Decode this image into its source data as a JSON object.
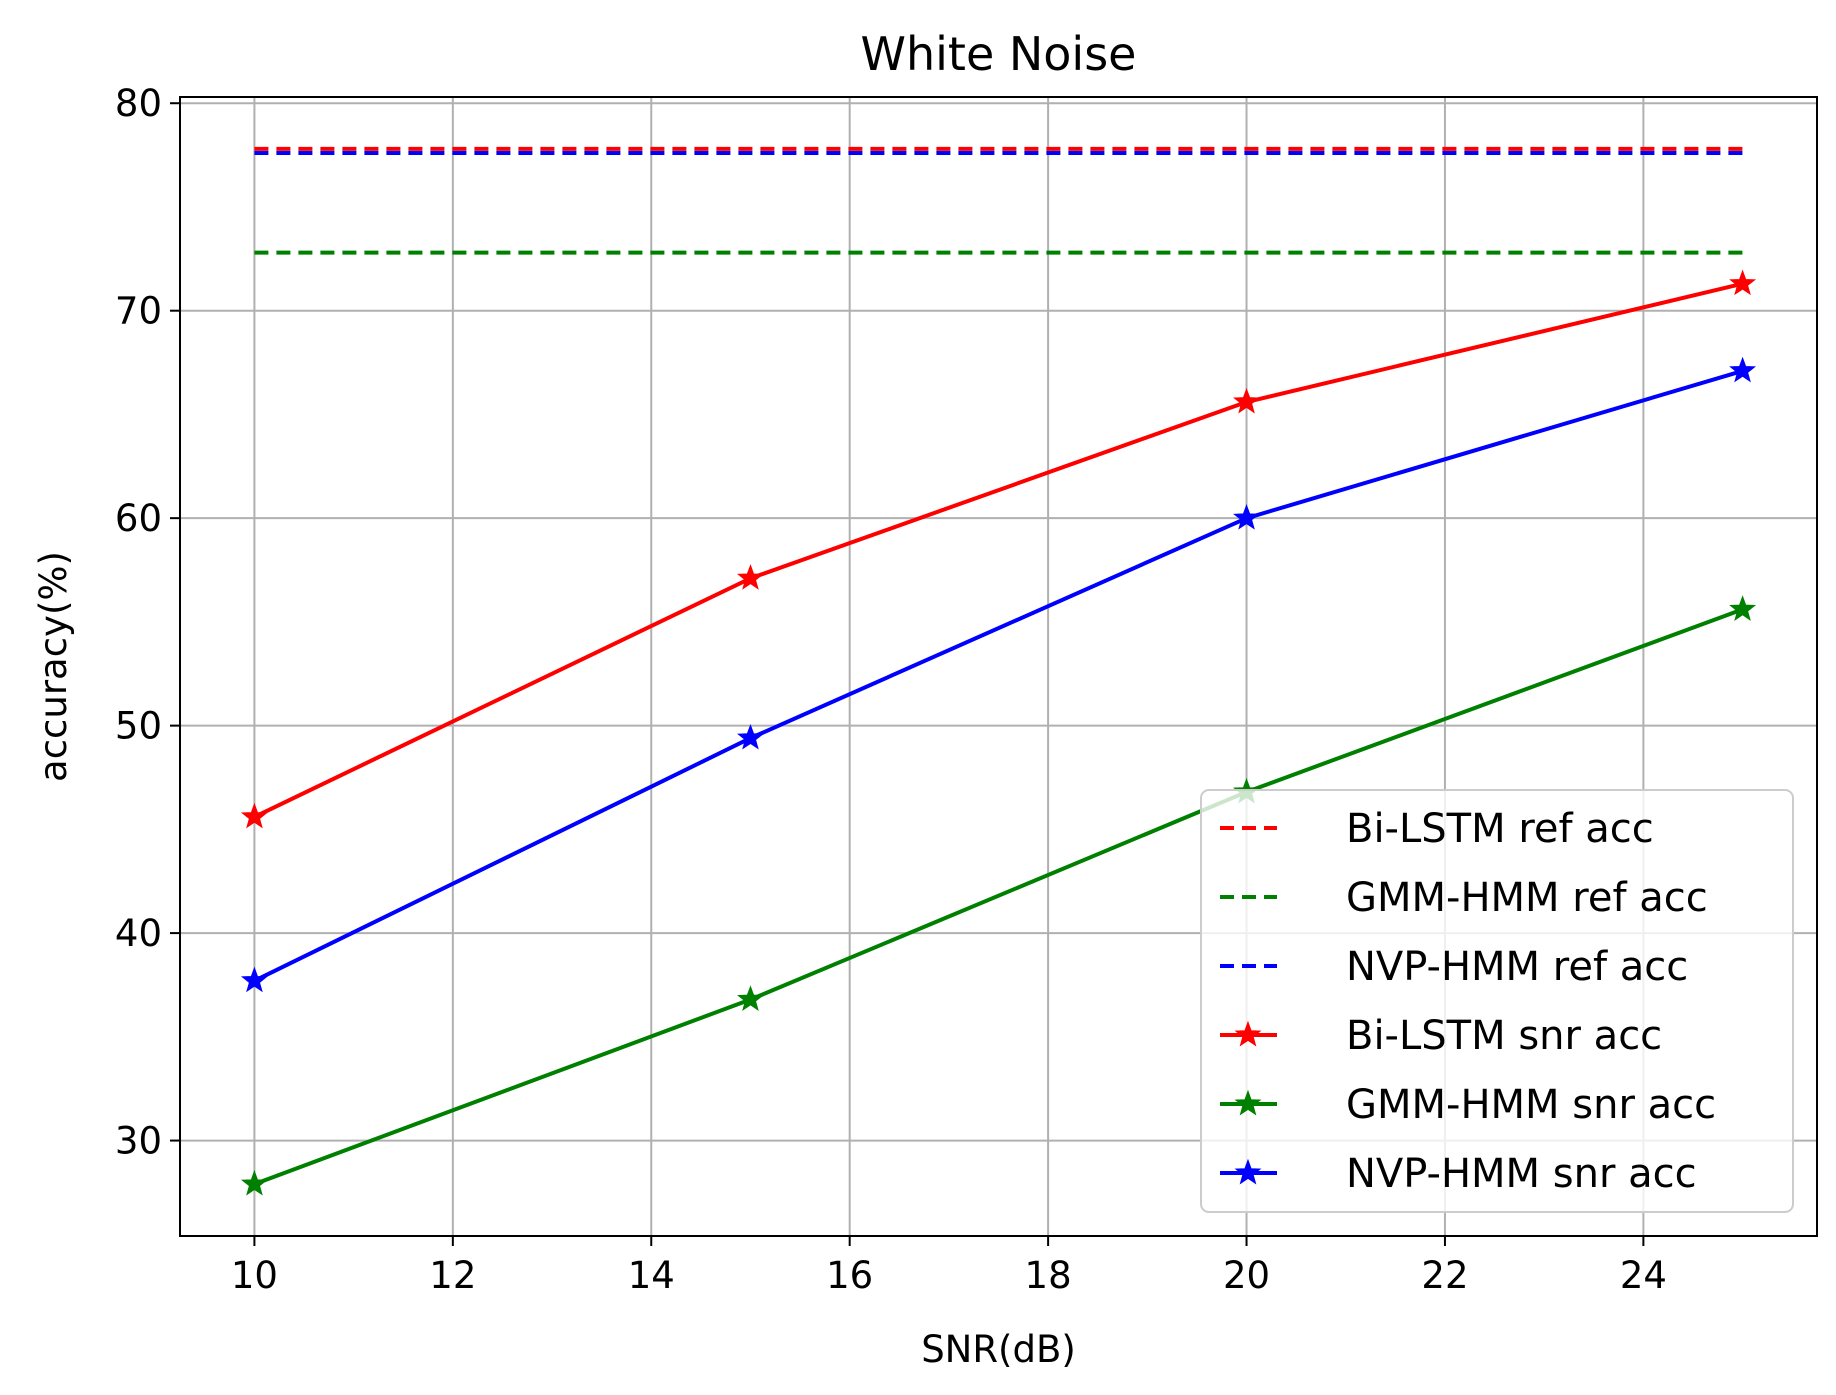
{
  "chart_data": {
    "type": "line",
    "title": "White Noise",
    "xlabel": "SNR(dB)",
    "ylabel": "accuracy(%)",
    "xlim": [
      9.25,
      25.75
    ],
    "ylim": [
      25.4,
      80.3
    ],
    "xticks": [
      10,
      12,
      14,
      16,
      18,
      20,
      22,
      24
    ],
    "yticks": [
      30,
      40,
      50,
      60,
      70,
      80
    ],
    "grid": true,
    "legend_position": "lower-right",
    "x": [
      10,
      15,
      20,
      25
    ],
    "series": [
      {
        "name": "Bi-LSTM ref acc",
        "color": "#ff0000",
        "style": "dashed",
        "marker": "none",
        "values": [
          77.8,
          77.8,
          77.8,
          77.8
        ]
      },
      {
        "name": "GMM-HMM ref acc",
        "color": "#008000",
        "style": "dashed",
        "marker": "none",
        "values": [
          72.8,
          72.8,
          72.8,
          72.8
        ]
      },
      {
        "name": "NVP-HMM ref acc",
        "color": "#0000ff",
        "style": "dashed",
        "marker": "none",
        "values": [
          77.6,
          77.6,
          77.6,
          77.6
        ]
      },
      {
        "name": "Bi-LSTM snr acc",
        "color": "#ff0000",
        "style": "solid",
        "marker": "star",
        "values": [
          45.6,
          57.1,
          65.6,
          71.3
        ]
      },
      {
        "name": "GMM-HMM snr acc",
        "color": "#008000",
        "style": "solid",
        "marker": "star",
        "values": [
          27.9,
          36.8,
          46.8,
          55.6
        ]
      },
      {
        "name": "NVP-HMM snr acc",
        "color": "#0000ff",
        "style": "solid",
        "marker": "star",
        "values": [
          37.7,
          49.4,
          60.0,
          67.1
        ]
      }
    ]
  }
}
